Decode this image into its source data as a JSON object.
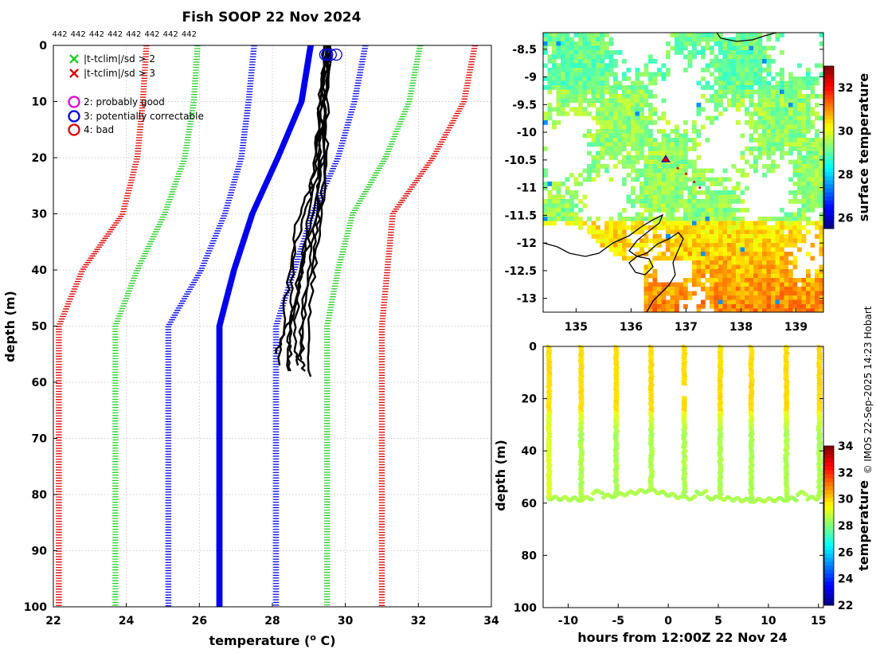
{
  "chart_data": [
    {
      "type": "line",
      "title": "Fish SOOP 22 Nov 2024",
      "xlabel": "temperature (",
      "xlabel_unit_sup": "o",
      "xlabel_unit": " C)",
      "ylabel": "depth (m)",
      "xlim": [
        22,
        34
      ],
      "ylim": [
        0,
        100
      ],
      "xticks": [
        "22",
        "24",
        "26",
        "28",
        "30",
        "32",
        "34"
      ],
      "yticks": [
        "0",
        "10",
        "20",
        "30",
        "40",
        "50",
        "60",
        "70",
        "80",
        "90",
        "100"
      ],
      "profile_ids": [
        "442",
        "442",
        "442",
        "442",
        "442",
        "442",
        "442",
        "442"
      ],
      "legend": [
        {
          "symbol": "x",
          "color": "#22cc22",
          "text": "|t-tclim|/sd > 2"
        },
        {
          "symbol": "x",
          "color": "#dd0000",
          "text": "|t-tclim|/sd > 3"
        },
        {
          "symbol": "o",
          "color": "#dd00dd",
          "text": "2: probably good"
        },
        {
          "symbol": "o",
          "color": "#0000dd",
          "text": "3: potentially correctable"
        },
        {
          "symbol": "o",
          "color": "#dd0000",
          "text": "4: bad"
        }
      ],
      "climatology": {
        "depth": [
          0,
          10,
          20,
          30,
          40,
          50,
          100
        ],
        "red_left": [
          24.55,
          24.45,
          24.3,
          23.9,
          22.8,
          22.15,
          22.15
        ],
        "green_left": [
          25.95,
          25.85,
          25.6,
          25.05,
          24.3,
          23.7,
          23.7
        ],
        "blue_left": [
          27.5,
          27.35,
          27.15,
          26.7,
          26.05,
          25.15,
          25.15
        ],
        "blue_mean": [
          29.05,
          28.8,
          28.15,
          27.45,
          26.95,
          26.55,
          26.55
        ],
        "blue_right": [
          30.55,
          30.25,
          29.8,
          29.1,
          28.6,
          28.1,
          28.1
        ],
        "green_right": [
          32.05,
          31.75,
          31.1,
          30.2,
          29.8,
          29.5,
          29.5
        ],
        "red_right": [
          33.55,
          33.25,
          32.4,
          31.3,
          31.15,
          31.0,
          31.0
        ]
      },
      "profiles": [
        {
          "depth": [
            0,
            10,
            20,
            30,
            38,
            48,
            56
          ],
          "temp": [
            29.55,
            29.45,
            29.5,
            29.3,
            29.1,
            28.9,
            28.8
          ]
        },
        {
          "depth": [
            0,
            12,
            22,
            30,
            40,
            50,
            58
          ],
          "temp": [
            29.6,
            29.5,
            29.35,
            29.1,
            28.75,
            28.5,
            28.45
          ]
        },
        {
          "depth": [
            0,
            10,
            20,
            28,
            36,
            46,
            57
          ],
          "temp": [
            29.5,
            29.3,
            29.2,
            29.0,
            28.6,
            28.35,
            28.2
          ]
        },
        {
          "depth": [
            0,
            8,
            18,
            28,
            38,
            48,
            55
          ],
          "temp": [
            29.45,
            29.35,
            29.4,
            29.25,
            28.9,
            28.55,
            28.1
          ]
        },
        {
          "depth": [
            0,
            10,
            20,
            30,
            40,
            50,
            59
          ],
          "temp": [
            29.55,
            29.4,
            29.45,
            29.35,
            29.15,
            29.0,
            29.05
          ]
        },
        {
          "depth": [
            0,
            12,
            24,
            32,
            42,
            52,
            58
          ],
          "temp": [
            29.5,
            29.3,
            29.1,
            28.65,
            28.55,
            28.45,
            28.5
          ]
        },
        {
          "depth": [
            0,
            9,
            19,
            29,
            39,
            49,
            57
          ],
          "temp": [
            29.6,
            29.45,
            29.3,
            29.2,
            29.0,
            28.8,
            28.7
          ]
        },
        {
          "depth": [
            0,
            11,
            22,
            33,
            44,
            54,
            58
          ],
          "temp": [
            29.5,
            29.35,
            29.25,
            28.95,
            28.7,
            28.6,
            28.9
          ]
        }
      ],
      "flag_circles": {
        "depth": [
          0.8,
          0.8,
          0.8,
          0.8
        ],
        "temp": [
          29.45,
          29.6,
          29.75,
          29.5
        ],
        "color": "#0000dd"
      }
    },
    {
      "type": "heatmap",
      "colorbar_label": "surface temperature",
      "xlim": [
        134.4,
        139.5
      ],
      "ylim": [
        -13.25,
        -8.2
      ],
      "xticks": [
        "135",
        "136",
        "137",
        "138",
        "139"
      ],
      "yticks": [
        "-8.5",
        "-9",
        "-9.5",
        "-10",
        "-10.5",
        "-11",
        "-11.5",
        "-12",
        "-12.5",
        "-13"
      ],
      "clim": [
        25.5,
        33
      ],
      "cbar_ticks": [
        "26",
        "28",
        "30",
        "32"
      ],
      "track": {
        "lon": [
          136.63,
          136.85,
          137.0,
          137.15,
          137.25
        ],
        "lat": [
          -10.52,
          -10.65,
          -10.75,
          -10.9,
          -11.0
        ]
      }
    },
    {
      "type": "scatter",
      "xlabel": "hours from 12:00Z 22 Nov 24",
      "ylabel": "depth (m)",
      "colorbar_label": "temperature",
      "xlim": [
        -12.5,
        15.5
      ],
      "ylim": [
        0,
        100
      ],
      "xticks": [
        "-10",
        "-5",
        "0",
        "5",
        "10",
        "15"
      ],
      "yticks": [
        "0",
        "20",
        "40",
        "60",
        "80",
        "100"
      ],
      "clim": [
        22,
        34
      ],
      "cbar_ticks": [
        "22",
        "24",
        "26",
        "28",
        "30",
        "32",
        "34"
      ],
      "cast_hours": [
        -12.0,
        -8.8,
        -5.3,
        -1.8,
        1.5,
        5.1,
        8.2,
        11.7,
        15.0
      ],
      "bottom_depths": [
        58,
        58.5,
        57,
        55,
        58,
        58,
        59,
        58.5,
        58
      ]
    }
  ],
  "credit": "© IMOS 22-Sep-2025 14:23 Hobart"
}
